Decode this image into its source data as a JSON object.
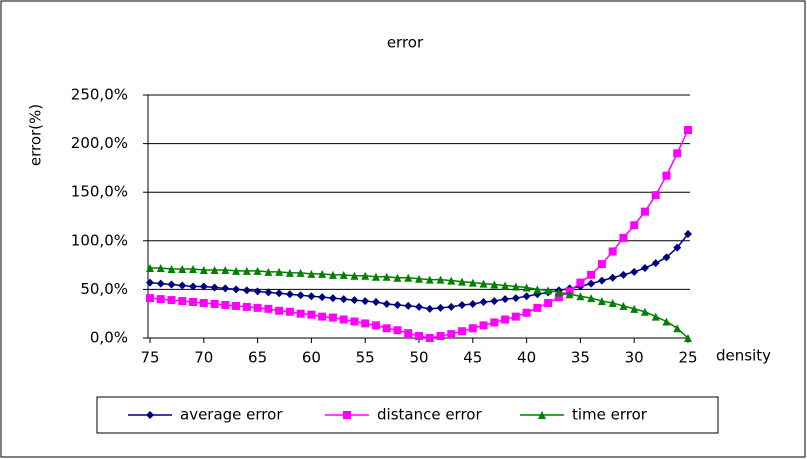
{
  "chart_data": {
    "type": "line",
    "title": "error",
    "ylabel": "error(%)",
    "xlabel": "density",
    "x": [
      75,
      74,
      73,
      72,
      71,
      70,
      69,
      68,
      67,
      66,
      65,
      64,
      63,
      62,
      61,
      60,
      59,
      58,
      57,
      56,
      55,
      54,
      53,
      52,
      51,
      50,
      49,
      48,
      47,
      46,
      45,
      44,
      43,
      42,
      41,
      40,
      39,
      38,
      37,
      36,
      35,
      34,
      33,
      32,
      31,
      30,
      29,
      28,
      27,
      26,
      25
    ],
    "xlim": [
      75,
      25
    ],
    "xticks": [
      75,
      70,
      65,
      60,
      55,
      50,
      45,
      40,
      35,
      30,
      25
    ],
    "ylim": [
      0,
      250
    ],
    "yticks": [
      {
        "value": 0,
        "label": "0,0%"
      },
      {
        "value": 50,
        "label": "50,0%"
      },
      {
        "value": 100,
        "label": "100,0%"
      },
      {
        "value": 150,
        "label": "150,0%"
      },
      {
        "value": 200,
        "label": "200,0%"
      },
      {
        "value": 250,
        "label": "250,0%"
      }
    ],
    "grid": true,
    "legend": "bottom",
    "series": [
      {
        "name": "average error",
        "color": "#000080",
        "marker": "diamond",
        "values": [
          57,
          56,
          55,
          54,
          53,
          53,
          52,
          51,
          50,
          49,
          48,
          47,
          46,
          45,
          44,
          43,
          42,
          41,
          40,
          39,
          38,
          37,
          35,
          34,
          33,
          32,
          30,
          31,
          32,
          34,
          35,
          37,
          38,
          40,
          41,
          43,
          45,
          47,
          49,
          51,
          53,
          56,
          59,
          62,
          65,
          68,
          72,
          77,
          83,
          93,
          107
        ]
      },
      {
        "name": "distance error",
        "color": "#ff00ff",
        "marker": "square",
        "values": [
          41,
          40,
          39,
          38,
          37,
          36,
          35,
          34,
          33,
          32,
          31,
          30,
          28,
          27,
          25,
          24,
          22,
          21,
          19,
          17,
          15,
          13,
          10,
          8,
          5,
          2,
          0,
          2,
          4,
          7,
          10,
          13,
          16,
          19,
          22,
          26,
          31,
          36,
          42,
          48,
          57,
          65,
          76,
          89,
          103,
          116,
          130,
          147,
          167,
          190,
          214
        ]
      },
      {
        "name": "time error",
        "color": "#008000",
        "marker": "triangle",
        "values": [
          72,
          72,
          71,
          71,
          71,
          70,
          70,
          70,
          69,
          69,
          69,
          68,
          68,
          67,
          67,
          66,
          66,
          65,
          65,
          64,
          64,
          63,
          63,
          62,
          62,
          61,
          60,
          60,
          59,
          58,
          57,
          56,
          55,
          54,
          53,
          52,
          50,
          49,
          47,
          45,
          43,
          41,
          38,
          36,
          33,
          30,
          27,
          22,
          17,
          10,
          0
        ]
      }
    ]
  }
}
